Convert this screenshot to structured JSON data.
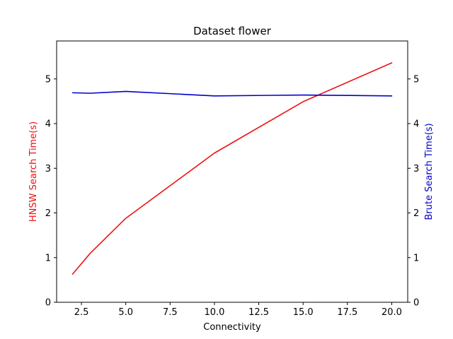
{
  "chart_data": {
    "type": "line",
    "title": "Dataset flower",
    "xlabel": "Connectivity",
    "ylabel_left": "HNSW Search Time(s)",
    "ylabel_right": "Brute Search Time(s)",
    "xlim": [
      1.1,
      20.9
    ],
    "ylim_left": [
      0,
      5.85
    ],
    "ylim_right": [
      0,
      5.85
    ],
    "x_ticks": [
      2.5,
      5.0,
      7.5,
      10.0,
      12.5,
      15.0,
      17.5,
      20.0
    ],
    "x_tick_labels": [
      "2.5",
      "5.0",
      "7.5",
      "10.0",
      "12.5",
      "15.0",
      "17.5",
      "20.0"
    ],
    "y_ticks_left": [
      0,
      1,
      2,
      3,
      4,
      5
    ],
    "y_tick_labels_left": [
      "0",
      "1",
      "2",
      "3",
      "4",
      "5"
    ],
    "y_ticks_right": [
      0,
      1,
      2,
      3,
      4,
      5
    ],
    "y_tick_labels_right": [
      "0",
      "1",
      "2",
      "3",
      "4",
      "5"
    ],
    "grid": false,
    "series": [
      {
        "axis": "left",
        "color": "#ee1111",
        "x": [
          2,
          3,
          5,
          10,
          15,
          20
        ],
        "values": [
          0.63,
          1.1,
          1.88,
          3.34,
          4.49,
          5.36
        ]
      },
      {
        "axis": "right",
        "color": "#0000cc",
        "x": [
          2,
          3,
          5,
          10,
          15,
          20
        ],
        "values": [
          4.69,
          4.68,
          4.72,
          4.62,
          4.64,
          4.62
        ]
      }
    ],
    "colors": {
      "left_axis_label": "#ee1111",
      "right_axis_label": "#0000cc"
    }
  }
}
